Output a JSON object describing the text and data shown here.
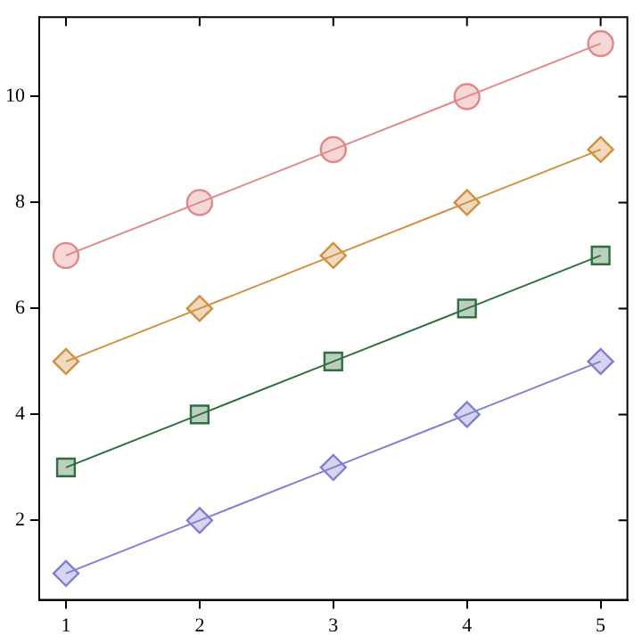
{
  "chart_data": {
    "type": "line",
    "x": [
      1,
      2,
      3,
      4,
      5
    ],
    "series": [
      {
        "color": "#8080d0",
        "marker": "diamond",
        "values": [
          1,
          2,
          3,
          4,
          5
        ]
      },
      {
        "color": "#2f6f3f",
        "marker": "square",
        "values": [
          3,
          4,
          5,
          6,
          7
        ]
      },
      {
        "color": "#d09040",
        "marker": "diamond",
        "values": [
          5,
          6,
          7,
          8,
          9
        ]
      },
      {
        "color": "#e08888",
        "marker": "circle",
        "values": [
          7,
          8,
          9,
          10,
          11
        ]
      }
    ],
    "xlim": [
      0.8,
      5.2
    ],
    "ylim": [
      0.5,
      11.5
    ],
    "xticks": [
      1,
      2,
      3,
      4,
      5
    ],
    "yticks": [
      2,
      4,
      6,
      8,
      10
    ],
    "grid": false,
    "legend": false
  }
}
